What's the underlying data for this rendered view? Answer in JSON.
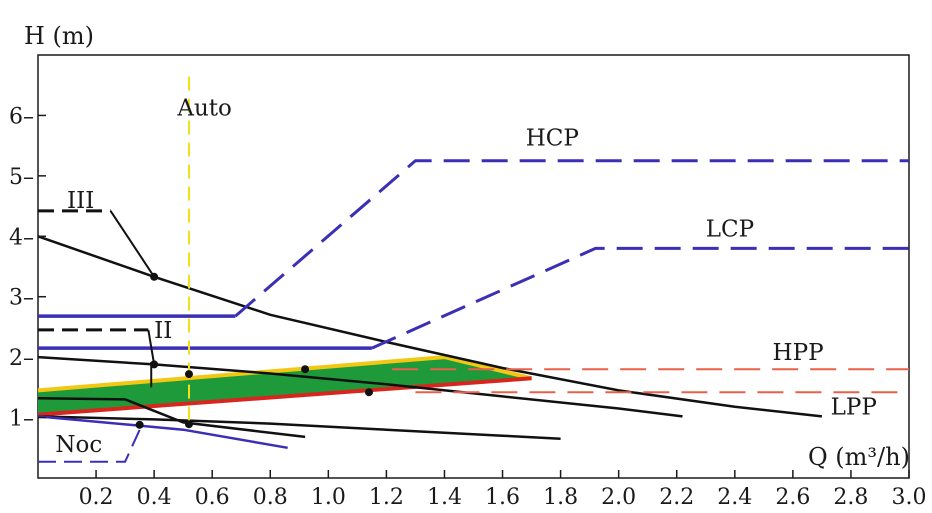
{
  "chart_data": {
    "type": "line",
    "xlabel": "Q (m³/h)",
    "ylabel": "H (m)",
    "xlim": [
      0,
      3.0
    ],
    "ylim": [
      0,
      7
    ],
    "x_ticks": [
      "0.2",
      "0.4",
      "0.6",
      "0.8",
      "1.0",
      "1.2",
      "1.4",
      "1.6",
      "1.8",
      "2.0",
      "2.2",
      "2.4",
      "2.6",
      "2.8",
      "3.0"
    ],
    "y_ticks": [
      "1",
      "2",
      "3",
      "4",
      "5",
      "6"
    ],
    "colors": {
      "curve": "#111111",
      "constant_pressure": "#3a2fb5",
      "proportional_pressure": "#e8604a",
      "auto": "#f2e01a",
      "zone_fill": "#1f9a3a",
      "zone_top": "#f2c814",
      "zone_bottom": "#d8261e"
    },
    "annotations": [
      {
        "id": "auto",
        "text": "Auto",
        "x": 0.48,
        "y": 6.0
      },
      {
        "id": "hcp",
        "text": "HCP",
        "x": 1.68,
        "y": 5.5
      },
      {
        "id": "lcp",
        "text": "LCP",
        "x": 2.3,
        "y": 4.0
      },
      {
        "id": "hpp",
        "text": "HPP",
        "x": 2.53,
        "y": 1.95
      },
      {
        "id": "lpp",
        "text": "LPP",
        "x": 2.73,
        "y": 1.05
      },
      {
        "id": "iii",
        "text": "III",
        "x": 0.1,
        "y": 4.47
      },
      {
        "id": "ii",
        "text": "II",
        "x": 0.4,
        "y": 2.32
      },
      {
        "id": "noc",
        "text": "Noc",
        "x": 0.06,
        "y": 0.43
      }
    ],
    "series": [
      {
        "id": "curve_III",
        "style": "solid",
        "x": [
          0,
          0.4,
          0.8,
          1.2,
          1.6,
          2.0,
          2.4,
          2.7
        ],
        "y": [
          4.0,
          3.33,
          2.7,
          2.25,
          1.82,
          1.45,
          1.18,
          1.02
        ]
      },
      {
        "id": "curve_II",
        "style": "solid",
        "x": [
          0,
          0.4,
          0.8,
          1.2,
          1.6,
          2.0,
          2.22
        ],
        "y": [
          2.0,
          1.88,
          1.73,
          1.55,
          1.35,
          1.15,
          1.02
        ]
      },
      {
        "id": "curve_I",
        "style": "solid",
        "x": [
          0,
          0.4,
          0.8,
          1.2,
          1.6,
          1.8
        ],
        "y": [
          1.02,
          0.97,
          0.9,
          0.8,
          0.7,
          0.65
        ]
      },
      {
        "id": "night_upper",
        "style": "solid",
        "x": [
          0,
          0.3,
          0.5,
          0.92
        ],
        "y": [
          1.32,
          1.3,
          0.92,
          0.68
        ]
      },
      {
        "id": "night_lower",
        "style": "solid",
        "x": [
          0,
          0.5,
          0.86
        ],
        "y": [
          1.02,
          0.8,
          0.5
        ]
      },
      {
        "id": "hcp_line",
        "style": "dashed",
        "x": [
          0.68,
          1.3,
          3.0
        ],
        "y": [
          2.68,
          5.25,
          5.25
        ]
      },
      {
        "id": "hcp_level",
        "style": "solid",
        "x": [
          0,
          0.68
        ],
        "y": [
          2.68,
          2.68
        ]
      },
      {
        "id": "lcp_line",
        "style": "dashed",
        "x": [
          1.15,
          1.92,
          3.0
        ],
        "y": [
          2.15,
          3.8,
          3.8
        ]
      },
      {
        "id": "lcp_level",
        "style": "solid",
        "x": [
          0,
          1.15
        ],
        "y": [
          2.15,
          2.15
        ]
      },
      {
        "id": "hpp_line",
        "style": "dashed",
        "x": [
          1.22,
          3.0
        ],
        "y": [
          1.8,
          1.8
        ]
      },
      {
        "id": "lpp_line",
        "style": "dashed",
        "x": [
          1.3,
          3.0
        ],
        "y": [
          1.42,
          1.42
        ]
      },
      {
        "id": "auto_line",
        "style": "dashed",
        "x": [
          0.52,
          0.52
        ],
        "y": [
          0.95,
          6.65
        ]
      },
      {
        "id": "noc_line",
        "style": "dashed",
        "x": [
          0,
          0.3,
          0.36
        ],
        "y": [
          0.27,
          0.27,
          0.9
        ]
      },
      {
        "id": "iii_leader",
        "style": "dashed",
        "x": [
          0,
          0.25
        ],
        "y": [
          4.42,
          4.42
        ]
      },
      {
        "id": "ii_leader",
        "style": "dashed",
        "x": [
          0,
          0.38
        ],
        "y": [
          2.45,
          2.45
        ]
      }
    ],
    "markers": [
      {
        "x": 0.4,
        "y": 3.33
      },
      {
        "x": 0.4,
        "y": 1.88
      },
      {
        "x": 0.52,
        "y": 1.72
      },
      {
        "x": 0.92,
        "y": 1.8
      },
      {
        "x": 1.14,
        "y": 1.42
      },
      {
        "x": 0.35,
        "y": 0.88
      },
      {
        "x": 0.52,
        "y": 0.89
      }
    ],
    "zone": {
      "upper": {
        "x": [
          0,
          1.4,
          1.7
        ],
        "y": [
          1.45,
          2.0,
          1.65
        ]
      },
      "lower": {
        "x": [
          0,
          1.7
        ],
        "y": [
          1.05,
          1.65
        ]
      }
    }
  }
}
